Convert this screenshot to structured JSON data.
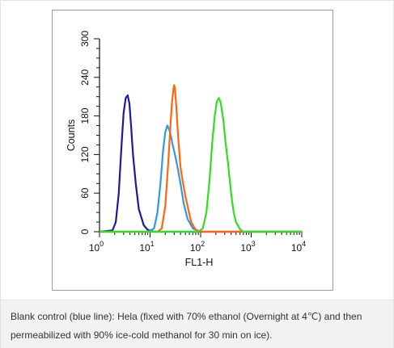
{
  "chart_data": {
    "type": "line",
    "title": "",
    "xlabel": "FL1-H",
    "ylabel": "Counts",
    "x_scale": "log",
    "xlim": [
      1,
      10000
    ],
    "ylim": [
      0,
      300
    ],
    "x_ticks": [
      {
        "value": 1,
        "base": "10",
        "exp": "0"
      },
      {
        "value": 10,
        "base": "10",
        "exp": "1"
      },
      {
        "value": 100,
        "base": "10",
        "exp": "2"
      },
      {
        "value": 1000,
        "base": "10",
        "exp": "3"
      },
      {
        "value": 10000,
        "base": "10",
        "exp": "4"
      }
    ],
    "y_ticks": [
      0,
      60,
      120,
      180,
      240,
      300
    ],
    "grid": false,
    "legend": "none",
    "series": [
      {
        "color": "#1a1a9e",
        "x": [
          1,
          1.8,
          2.1,
          2.4,
          2.7,
          3.0,
          3.3,
          3.6,
          3.9,
          4.2,
          4.6,
          5.2,
          6,
          7.5,
          9,
          12,
          100,
          1000,
          10000
        ],
        "y": [
          0,
          2,
          15,
          60,
          130,
          185,
          208,
          212,
          200,
          165,
          120,
          75,
          35,
          10,
          3,
          0,
          0,
          0,
          0
        ]
      },
      {
        "color": "#3399dd",
        "x": [
          1,
          9,
          12,
          14,
          16,
          18,
          20,
          22,
          24,
          26,
          28,
          31,
          35,
          40,
          46,
          55,
          70,
          100,
          1000,
          10000
        ],
        "y": [
          0,
          0,
          5,
          30,
          75,
          125,
          155,
          165,
          158,
          148,
          135,
          120,
          100,
          75,
          45,
          20,
          5,
          0,
          0,
          0
        ]
      },
      {
        "color": "#ff6611",
        "x": [
          1,
          14,
          17,
          20,
          23,
          25,
          27,
          29,
          30,
          31,
          33,
          36,
          40,
          45,
          50,
          57,
          65,
          80,
          100,
          1000,
          10000
        ],
        "y": [
          0,
          0,
          5,
          40,
          110,
          160,
          200,
          222,
          228,
          222,
          195,
          145,
          100,
          75,
          55,
          35,
          15,
          3,
          0,
          0,
          0
        ]
      },
      {
        "color": "#33dd22",
        "x": [
          1,
          90,
          110,
          130,
          150,
          170,
          190,
          210,
          230,
          250,
          280,
          310,
          350,
          400,
          450,
          500,
          600,
          700,
          1000,
          10000
        ],
        "y": [
          0,
          0,
          5,
          30,
          80,
          140,
          180,
          203,
          208,
          200,
          175,
          140,
          105,
          60,
          30,
          15,
          4,
          0,
          0,
          0
        ]
      }
    ]
  },
  "caption": {
    "text": "Blank control (blue line): Hela (fixed with 70% ethanol (Overnight at 4℃) and then permeabilized with 90% ice-cold methanol for 30 min on ice)."
  }
}
